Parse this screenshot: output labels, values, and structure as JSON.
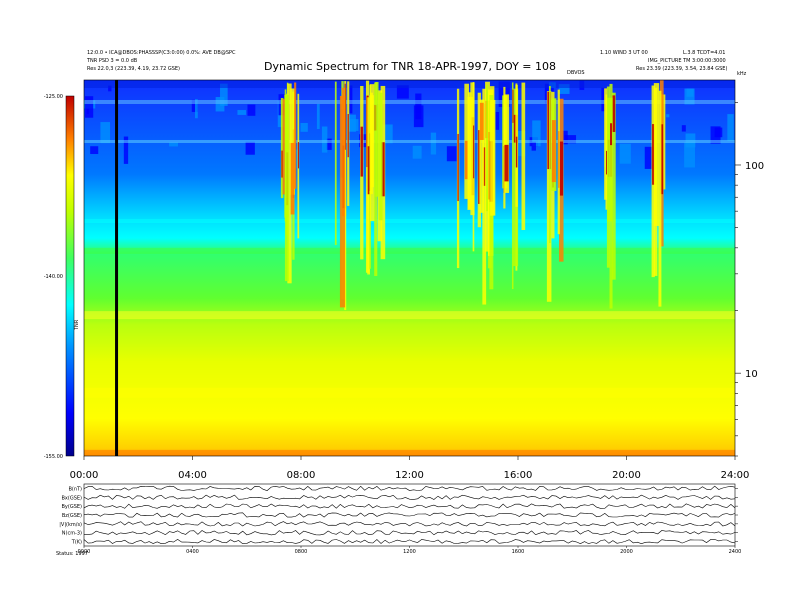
{
  "header": {
    "left_line1": "12:0.0 • ICA@DBOS:PHASSSP(C3:0:00) 0.0%: AVE DB@SPC",
    "left_line2": "TNR PSD 3 = 0.0 dB",
    "left_line3": "Res  22.0,3 (223.39, 4.19, 23.72 GSE)",
    "right_line1": "1.10 WIND 3 UT 00",
    "right_line2": "L.3.8 TCDT=4.01",
    "right_line3": "IMG_PICTURE TM 3:00:00:3000",
    "right_line4": "Res  23.39 (223.39, 3.54, 23.84 GSE)",
    "center_small": "DBVOS",
    "right_unit": "kHz"
  },
  "chart_data": {
    "type": "heatmap",
    "title": "Dynamic Spectrum for TNR 18-APR-1997, DOY = 108",
    "x": {
      "label": "",
      "range_hours": [
        0,
        24
      ],
      "ticks": [
        "00:00",
        "04:00",
        "08:00",
        "12:00",
        "16:00",
        "20:00",
        "24:00"
      ]
    },
    "y": {
      "label": "",
      "scale": "log",
      "unit": "kHz",
      "range": [
        4,
        256
      ],
      "ticks": [
        "100",
        "10"
      ]
    },
    "colorbar": {
      "label": "TNR",
      "range": [
        -155.0,
        -125.0
      ],
      "ticks": [
        "-125.00",
        "-140.00",
        "-155.00"
      ],
      "colors": [
        "#00008b",
        "#0000ff",
        "#0078ff",
        "#00ffff",
        "#00ff80",
        "#80ff00",
        "#ffff00",
        "#ffa500",
        "#ff3000",
        "#a00000"
      ]
    },
    "data_gap_marker_hour": 1.2,
    "bands": [
      {
        "name": "upper",
        "freq_kHz": [
          55,
          256
        ],
        "level": "low"
      },
      {
        "name": "cyan",
        "freq_kHz": [
          40,
          55
        ],
        "level": "low-mid"
      },
      {
        "name": "green",
        "freq_kHz": [
          19,
          40
        ],
        "level": "mid"
      },
      {
        "name": "yellow",
        "freq_kHz": [
          4,
          19
        ],
        "level": "mid-high"
      }
    ],
    "bursts_hours": [
      7.2,
      7.6,
      9.5,
      10.3,
      10.8,
      14.0,
      14.6,
      15.2,
      15.8,
      17.2,
      19.5,
      21.0
    ]
  },
  "panels": {
    "labels": [
      "B(nT)",
      "Bx(GSE)",
      "By(GSE)",
      "Bz(GSE)",
      "|V|(km/s)",
      "N(cm-3)",
      "T(K)"
    ],
    "x_ticks": [
      "0000",
      "0400",
      "0800",
      "1200",
      "1600",
      "2000",
      "2400"
    ],
    "footer_left": "Status: 1997"
  }
}
